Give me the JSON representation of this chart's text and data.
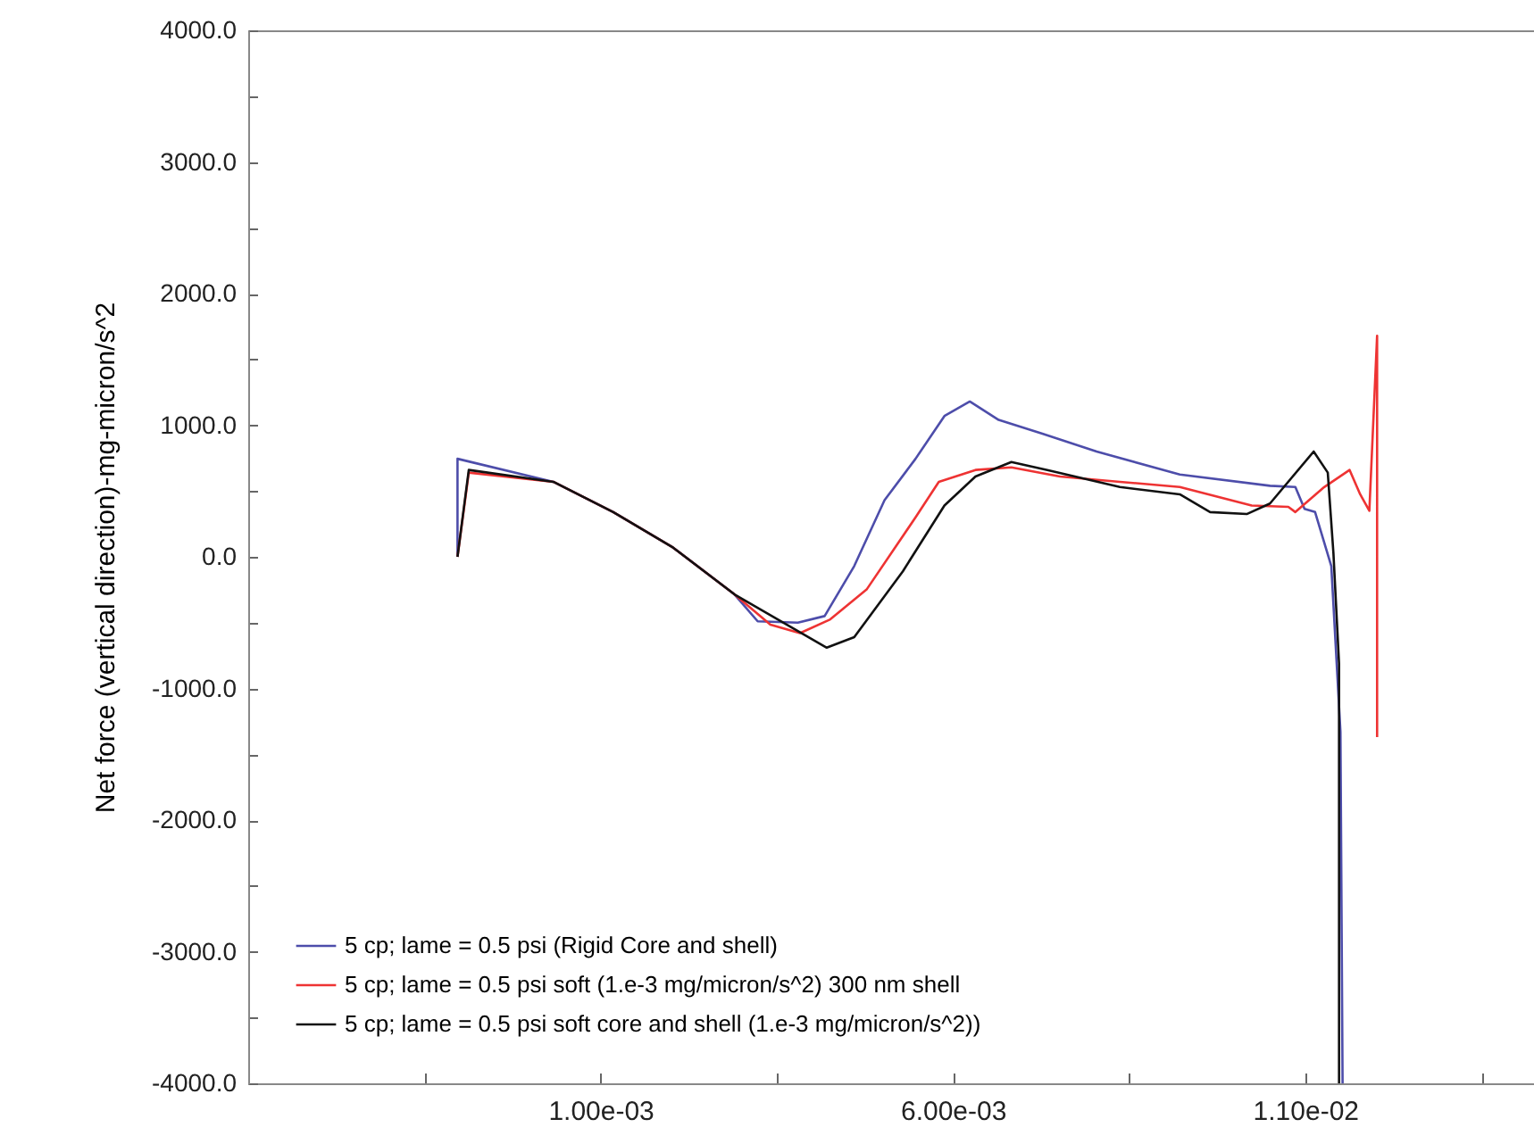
{
  "chart_data": {
    "type": "line",
    "ylabel": "Net force (vertical direction)-mg-micron/s^2",
    "xlim": [
      -0.004,
      0.0145
    ],
    "ylim": [
      -4000,
      4000
    ],
    "xticks": [
      {
        "value": -0.0015,
        "label": null
      },
      {
        "value": 0.001,
        "label": "1.00e-03"
      },
      {
        "value": 0.0035,
        "label": null
      },
      {
        "value": 0.006,
        "label": "6.00e-03"
      },
      {
        "value": 0.0085,
        "label": null
      },
      {
        "value": 0.011,
        "label": "1.10e-02"
      },
      {
        "value": 0.0135,
        "label": null
      }
    ],
    "yticks": [
      {
        "value": -4000,
        "label": "-4000.0"
      },
      {
        "value": -3500,
        "label": null
      },
      {
        "value": -3000,
        "label": "-3000.0"
      },
      {
        "value": -2500,
        "label": null
      },
      {
        "value": -2000,
        "label": "-2000.0"
      },
      {
        "value": -1500,
        "label": null
      },
      {
        "value": -1000,
        "label": "-1000.0"
      },
      {
        "value": -500,
        "label": null
      },
      {
        "value": 0,
        "label": "0.0"
      },
      {
        "value": 500,
        "label": null
      },
      {
        "value": 1000,
        "label": "1000.0"
      },
      {
        "value": 1500,
        "label": null
      },
      {
        "value": 2000,
        "label": "2000.0"
      },
      {
        "value": 2500,
        "label": null
      },
      {
        "value": 3000,
        "label": "3000.0"
      },
      {
        "value": 3500,
        "label": null
      },
      {
        "value": 4000,
        "label": "4000.0"
      }
    ],
    "grid": false,
    "legend": "bottom left",
    "marker": "none",
    "line_style": "solid",
    "series": [
      {
        "name": "5 cp; lame = 0.5 psi (Rigid Core and shell)",
        "color": "#4d4daa",
        "x": [
          -0.00103,
          -0.00103,
          0.00033,
          0.00118,
          0.00203,
          0.0029,
          0.00323,
          0.0038,
          0.00418,
          0.0046,
          0.00503,
          0.00547,
          0.00588,
          0.00624,
          0.00665,
          0.00727,
          0.00804,
          0.00922,
          0.0105,
          0.01086,
          0.01099,
          0.01114,
          0.01137,
          0.0115,
          0.01153
        ],
        "values": [
          0,
          745,
          570,
          340,
          70,
          -285,
          -490,
          -500,
          -450,
          -70,
          430,
          745,
          1070,
          1180,
          1040,
          935,
          800,
          625,
          540,
          530,
          365,
          340,
          -70,
          -1330,
          -4000
        ]
      },
      {
        "name": "5 cp; lame = 0.5 psi soft (1.e-3 mg/micron/s^2) 300 nm shell",
        "color": "#ee3333",
        "x": [
          -0.00103,
          -0.00087,
          0.00033,
          0.00118,
          0.00203,
          0.0029,
          0.00341,
          0.00383,
          0.00426,
          0.00478,
          0.00547,
          0.0058,
          0.00632,
          0.00683,
          0.00752,
          0.00837,
          0.00922,
          0.01024,
          0.01076,
          0.01086,
          0.01127,
          0.01163,
          0.01178,
          0.01191,
          0.01202,
          0.01202
        ],
        "values": [
          0,
          640,
          570,
          340,
          70,
          -285,
          -515,
          -580,
          -475,
          -245,
          300,
          570,
          660,
          680,
          610,
          570,
          530,
          390,
          380,
          340,
          530,
          660,
          475,
          350,
          1680,
          -1370
        ]
      },
      {
        "name": "5 cp; lame = 0.5 psi soft core and shell (1.e-3 mg/micron/s^2))",
        "color": "#111111",
        "x": [
          -0.00103,
          -0.00087,
          0.00033,
          0.00118,
          0.00203,
          0.0029,
          0.00421,
          0.0046,
          0.00529,
          0.00588,
          0.00632,
          0.00683,
          0.00734,
          0.00837,
          0.00922,
          0.00965,
          0.01017,
          0.0105,
          0.01112,
          0.01132,
          0.0114,
          0.01148,
          0.01148
        ],
        "values": [
          0,
          660,
          570,
          340,
          70,
          -285,
          -690,
          -610,
          -110,
          390,
          610,
          720,
          660,
          530,
          475,
          340,
          325,
          405,
          800,
          640,
          30,
          -810,
          -4000
        ]
      }
    ]
  }
}
